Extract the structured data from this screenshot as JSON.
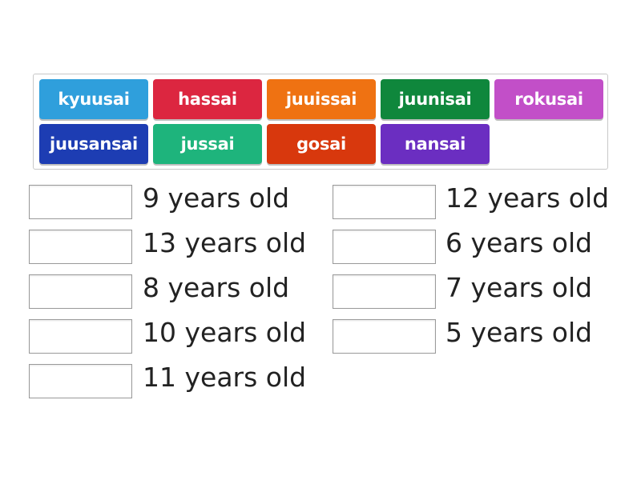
{
  "tiles": [
    {
      "label": "kyuusai"
    },
    {
      "label": "hassai"
    },
    {
      "label": "juuissai"
    },
    {
      "label": "juunisai"
    },
    {
      "label": "rokusai"
    },
    {
      "label": "juusansai"
    },
    {
      "label": "jussai"
    },
    {
      "label": "gosai"
    },
    {
      "label": "nansai"
    }
  ],
  "targets": {
    "columns": [
      [
        {
          "label": "9 years old"
        },
        {
          "label": "13 years old"
        },
        {
          "label": "8 years old"
        },
        {
          "label": "10 years old"
        },
        {
          "label": "11 years old"
        }
      ],
      [
        {
          "label": "12 years old"
        },
        {
          "label": "6 years old"
        },
        {
          "label": "7 years old"
        },
        {
          "label": "5 years old"
        }
      ]
    ]
  }
}
